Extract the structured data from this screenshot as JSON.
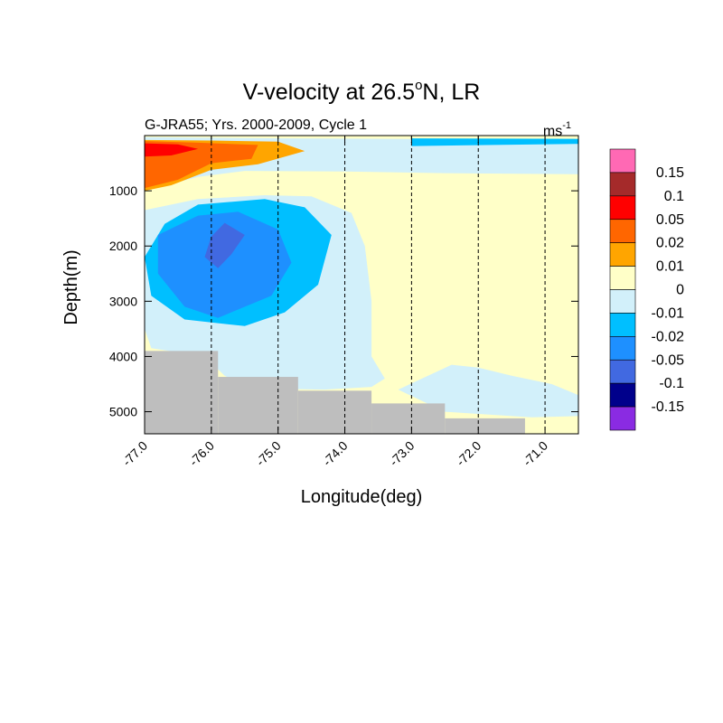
{
  "chart_data": {
    "type": "contour",
    "title": {
      "prefix": "V-velocity at 26.5",
      "sup": "o",
      "suffix": "N, LR"
    },
    "subtitle_left": "G-JRA55; Yrs. 2000-2009, Cycle 1",
    "units": {
      "base": "ms",
      "sup": "-1"
    },
    "xlabel": "Longitude(deg)",
    "ylabel": "Depth(m)",
    "xlim": [
      -77.0,
      -70.5
    ],
    "ylim_depth": [
      0,
      5400
    ],
    "y_reversed": true,
    "x_ticks": [
      {
        "value": -77.0,
        "label": "-77.0"
      },
      {
        "value": -76.0,
        "label": "-76.0"
      },
      {
        "value": -75.0,
        "label": "-75.0"
      },
      {
        "value": -74.0,
        "label": "-74.0"
      },
      {
        "value": -73.0,
        "label": "-73.0"
      },
      {
        "value": -72.0,
        "label": "-72.0"
      },
      {
        "value": -71.0,
        "label": "-71.0"
      }
    ],
    "y_ticks": [
      {
        "value": 1000,
        "label": "1000"
      },
      {
        "value": 2000,
        "label": "2000"
      },
      {
        "value": 3000,
        "label": "3000"
      },
      {
        "value": 4000,
        "label": "4000"
      },
      {
        "value": 5000,
        "label": "5000"
      }
    ],
    "dashed_lines_lon": [
      -77.0,
      -76.0,
      -75.0,
      -74.0,
      -73.0,
      -72.0,
      -71.0
    ],
    "colorbar": {
      "colors": [
        "#FF69B4",
        "#A52A2A",
        "#FF0000",
        "#FF6600",
        "#FFA500",
        "#FFFFC8",
        "#D2F0FA",
        "#00BFFF",
        "#1E90FF",
        "#4169E1",
        "#00008B",
        "#8A2BE2"
      ],
      "labels": [
        "0.15",
        "0.1",
        "0.05",
        "0.02",
        "0.01",
        "0",
        "-0.01",
        "-0.02",
        "-0.05",
        "-0.1",
        "-0.15"
      ]
    },
    "background_fill": "#FFFFC8",
    "land_color": "#BEBEBE",
    "contour_regions": [
      {
        "level": "0 to -0.01",
        "color": "#D2F0FA",
        "points": [
          [
            -77.0,
            30
          ],
          [
            -75.0,
            50
          ],
          [
            -73.0,
            60
          ],
          [
            -70.5,
            70
          ],
          [
            -70.5,
            700
          ],
          [
            -72.5,
            680
          ],
          [
            -74.0,
            650
          ],
          [
            -75.5,
            640
          ],
          [
            -76.2,
            750
          ],
          [
            -77.0,
            1000
          ]
        ]
      },
      {
        "level": "0 to -0.01",
        "color": "#D2F0FA",
        "points": [
          [
            -77.0,
            1350
          ],
          [
            -76.2,
            1150
          ],
          [
            -75.2,
            1080
          ],
          [
            -74.5,
            1100
          ],
          [
            -73.9,
            1400
          ],
          [
            -73.7,
            2000
          ],
          [
            -73.6,
            3000
          ],
          [
            -73.6,
            4000
          ],
          [
            -73.4,
            4400
          ],
          [
            -73.6,
            4550
          ],
          [
            -74.3,
            4600
          ],
          [
            -75.4,
            4580
          ],
          [
            -75.8,
            4350
          ],
          [
            -76.1,
            4000
          ],
          [
            -76.9,
            3850
          ],
          [
            -77.0,
            3500
          ]
        ]
      },
      {
        "level": "0 to -0.01",
        "color": "#D2F0FA",
        "points": [
          [
            -72.4,
            4150
          ],
          [
            -72.0,
            4200
          ],
          [
            -71.5,
            4350
          ],
          [
            -70.9,
            4500
          ],
          [
            -70.5,
            4700
          ],
          [
            -70.5,
            5080
          ],
          [
            -71.2,
            5100
          ],
          [
            -72.5,
            5000
          ],
          [
            -73.2,
            4600
          ]
        ]
      },
      {
        "level": "-0.01 to -0.02",
        "color": "#00BFFF",
        "points": [
          [
            -73.0,
            50
          ],
          [
            -70.5,
            60
          ],
          [
            -70.5,
            150
          ],
          [
            -73.0,
            190
          ]
        ]
      },
      {
        "level": "-0.01 to -0.02",
        "color": "#00BFFF",
        "points": [
          [
            -76.7,
            1600
          ],
          [
            -76.2,
            1250
          ],
          [
            -75.2,
            1150
          ],
          [
            -74.6,
            1300
          ],
          [
            -74.2,
            1800
          ],
          [
            -74.4,
            2700
          ],
          [
            -74.9,
            3200
          ],
          [
            -75.5,
            3450
          ],
          [
            -76.4,
            3330
          ],
          [
            -76.9,
            2900
          ],
          [
            -77.0,
            2200
          ]
        ]
      },
      {
        "level": "-0.02 to -0.05",
        "color": "#1E90FF",
        "points": [
          [
            -76.8,
            1800
          ],
          [
            -76.2,
            1450
          ],
          [
            -75.6,
            1380
          ],
          [
            -75.0,
            1700
          ],
          [
            -74.8,
            2300
          ],
          [
            -75.1,
            2900
          ],
          [
            -75.9,
            3300
          ],
          [
            -76.4,
            3100
          ],
          [
            -76.8,
            2500
          ]
        ]
      },
      {
        "level": "-0.05 to -0.1",
        "color": "#4169E1",
        "points": [
          [
            -76.0,
            1830
          ],
          [
            -75.8,
            1580
          ],
          [
            -75.5,
            1800
          ],
          [
            -75.7,
            2150
          ],
          [
            -75.9,
            2400
          ],
          [
            -76.1,
            2200
          ]
        ]
      },
      {
        "level": "0.01 to 0.02",
        "color": "#FFA500",
        "points": [
          [
            -77.0,
            80
          ],
          [
            -76.0,
            90
          ],
          [
            -75.0,
            110
          ],
          [
            -74.6,
            280
          ],
          [
            -75.3,
            520
          ],
          [
            -76.0,
            620
          ],
          [
            -76.6,
            900
          ],
          [
            -77.0,
            1000
          ]
        ]
      },
      {
        "level": "0.02 to 0.05",
        "color": "#FF6600",
        "points": [
          [
            -77.0,
            100
          ],
          [
            -76.2,
            130
          ],
          [
            -75.3,
            170
          ],
          [
            -75.4,
            420
          ],
          [
            -76.0,
            500
          ],
          [
            -76.5,
            800
          ],
          [
            -77.0,
            950
          ]
        ]
      },
      {
        "level": "0.05 to 0.1",
        "color": "#FF0000",
        "points": [
          [
            -77.0,
            140
          ],
          [
            -76.5,
            160
          ],
          [
            -76.2,
            240
          ],
          [
            -76.6,
            360
          ],
          [
            -77.0,
            380
          ]
        ]
      }
    ],
    "land": [
      [
        -77.0,
        -75.9,
        3900
      ],
      [
        -75.9,
        -74.7,
        4370
      ],
      [
        -74.7,
        -73.6,
        4620
      ],
      [
        -73.6,
        -72.5,
        4850
      ],
      [
        -72.5,
        -71.3,
        5120
      ]
    ]
  }
}
